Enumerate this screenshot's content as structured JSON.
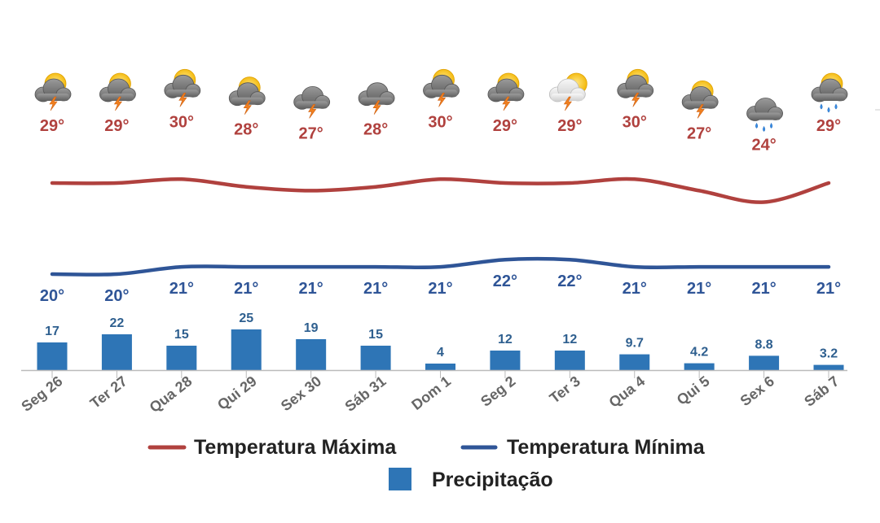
{
  "chart_data": {
    "type": "bar",
    "categories": [
      "Seg 26",
      "Ter 27",
      "Qua 28",
      "Qui 29",
      "Sex 30",
      "Sáb 31",
      "Dom 1",
      "Seg 2",
      "Ter 3",
      "Qua 4",
      "Qui 5",
      "Sex 6",
      "Sáb 7"
    ],
    "series": [
      {
        "name": "Temperatura Máxima",
        "type": "line",
        "color": "#b0413e",
        "values": [
          29,
          29,
          30,
          28,
          27,
          28,
          30,
          29,
          29,
          30,
          27,
          24,
          29
        ],
        "value_labels": [
          "29°",
          "29°",
          "30°",
          "28°",
          "27°",
          "28°",
          "30°",
          "29°",
          "29°",
          "30°",
          "27°",
          "24°",
          "29°"
        ]
      },
      {
        "name": "Temperatura Mínima",
        "type": "line",
        "color": "#2f5597",
        "values": [
          20,
          20,
          21,
          21,
          21,
          21,
          21,
          22,
          22,
          21,
          21,
          21,
          21
        ],
        "value_labels": [
          "20°",
          "20°",
          "21°",
          "21°",
          "21°",
          "21°",
          "21°",
          "22°",
          "22°",
          "21°",
          "21°",
          "21°",
          "21°"
        ]
      },
      {
        "name": "Precipitação",
        "type": "bar",
        "color": "#2e75b6",
        "values": [
          17,
          22,
          15,
          25,
          19,
          15,
          4,
          12,
          12,
          9.7,
          4.2,
          8.8,
          3.2
        ],
        "value_labels": [
          "17",
          "22",
          "15",
          "25",
          "19",
          "15",
          "4",
          "12",
          "12",
          "9.7",
          "4.2",
          "8.8",
          "3.2"
        ]
      }
    ],
    "weather_icons": [
      "storm-sun-icon",
      "storm-sun-icon",
      "storm-sun-icon",
      "storm-sun-icon",
      "storm-icon",
      "storm-icon",
      "storm-sun-icon",
      "storm-sun-icon",
      "storm-sun-light-icon",
      "storm-sun-icon",
      "storm-sun-icon",
      "rain-cloud-icon",
      "rain-sun-icon"
    ],
    "legend": {
      "items": [
        "Temperatura Máxima",
        "Temperatura Mínima",
        "Precipitação"
      ],
      "position": "bottom"
    },
    "grid": false,
    "title": "",
    "xlabel": "",
    "ylabel": ""
  }
}
